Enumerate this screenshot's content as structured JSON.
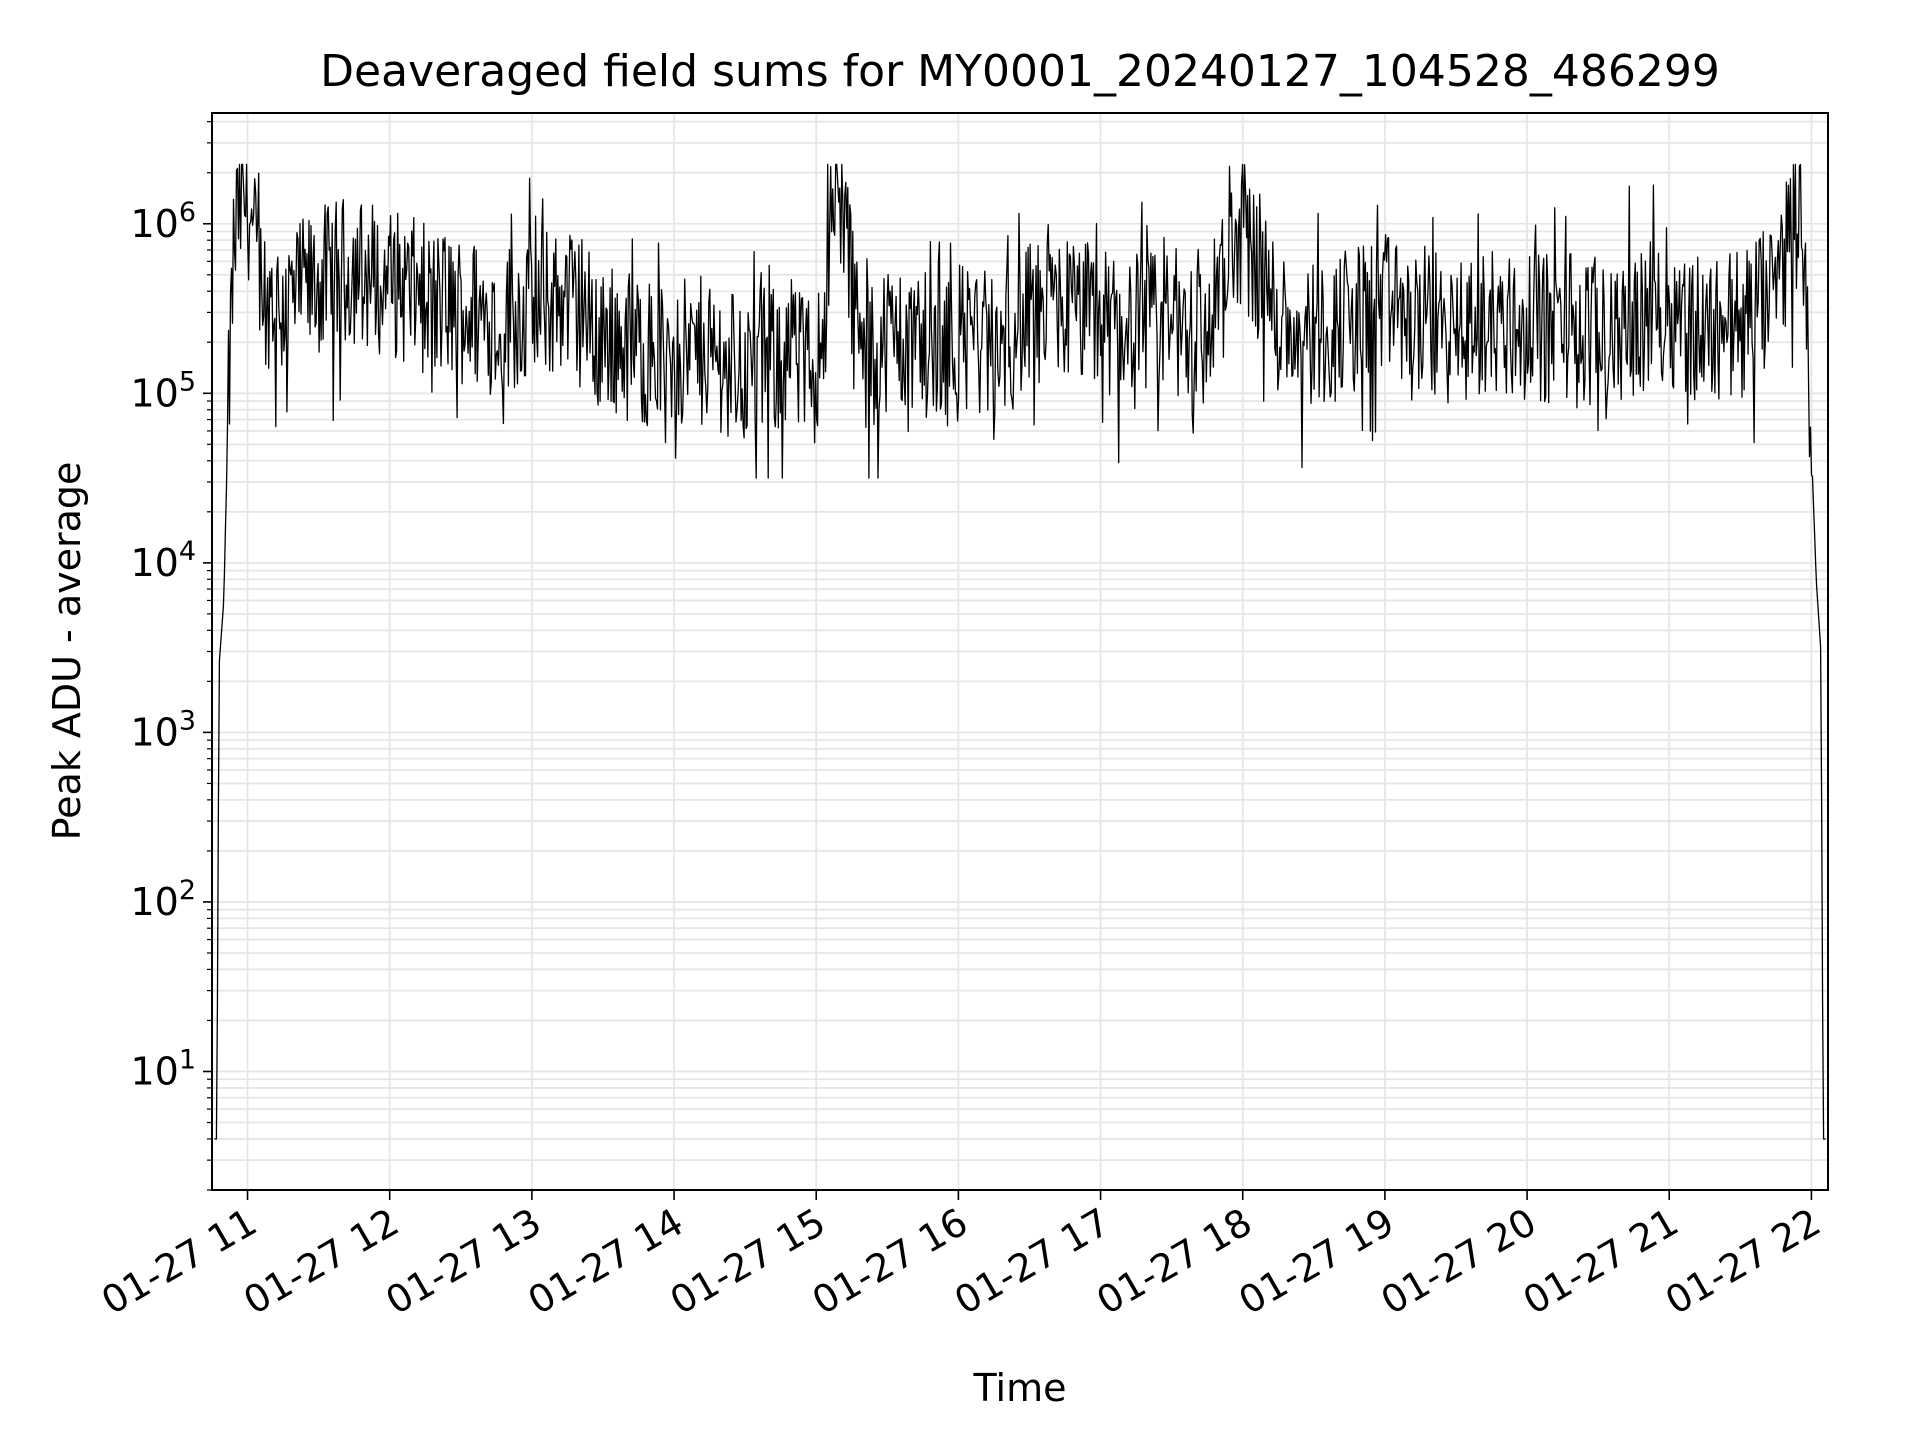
{
  "chart_data": {
    "type": "line",
    "title": "Deaveraged field sums for MY0001_20240127_104528_486299",
    "xlabel": "Time",
    "ylabel": "Peak ADU - average",
    "yscale": "log",
    "ylim": [
      2,
      4500000
    ],
    "xlim": [
      "2024-01-27 10:45",
      "2024-01-27 22:07"
    ],
    "x_ticks": [
      {
        "value": "2024-01-27 11:00",
        "label": "01-27 11"
      },
      {
        "value": "2024-01-27 12:00",
        "label": "01-27 12"
      },
      {
        "value": "2024-01-27 13:00",
        "label": "01-27 13"
      },
      {
        "value": "2024-01-27 14:00",
        "label": "01-27 14"
      },
      {
        "value": "2024-01-27 15:00",
        "label": "01-27 15"
      },
      {
        "value": "2024-01-27 16:00",
        "label": "01-27 16"
      },
      {
        "value": "2024-01-27 17:00",
        "label": "01-27 17"
      },
      {
        "value": "2024-01-27 18:00",
        "label": "01-27 18"
      },
      {
        "value": "2024-01-27 19:00",
        "label": "01-27 19"
      },
      {
        "value": "2024-01-27 20:00",
        "label": "01-27 20"
      },
      {
        "value": "2024-01-27 21:00",
        "label": "01-27 21"
      },
      {
        "value": "2024-01-27 22:00",
        "label": "01-27 22"
      }
    ],
    "y_ticks": [
      {
        "value": 10,
        "base": "10",
        "exp": "1"
      },
      {
        "value": 100,
        "base": "10",
        "exp": "2"
      },
      {
        "value": 1000,
        "base": "10",
        "exp": "3"
      },
      {
        "value": 10000,
        "base": "10",
        "exp": "4"
      },
      {
        "value": 100000,
        "base": "10",
        "exp": "5"
      },
      {
        "value": 1000000,
        "base": "10",
        "exp": "6"
      }
    ],
    "grid": true,
    "line_color": "#000000",
    "series": [
      {
        "points": [
          [
            "2024-01-27 10:46",
            4
          ],
          [
            "2024-01-27 10:47",
            4
          ],
          [
            "2024-01-27 10:48",
            2500
          ],
          [
            "2024-01-27 10:50",
            6000
          ],
          [
            "2024-01-27 10:52",
            100000
          ],
          [
            "2024-01-27 10:54",
            700000
          ],
          [
            "2024-01-27 10:56",
            1300000
          ],
          [
            "2024-01-27 10:58",
            1500000
          ],
          [
            "2024-01-27 11:00",
            1600000
          ],
          [
            "2024-01-27 11:05",
            500000
          ],
          [
            "2024-01-27 11:15",
            350000
          ],
          [
            "2024-01-27 11:30",
            500000
          ],
          [
            "2024-01-27 11:45",
            600000
          ],
          [
            "2024-01-27 12:00",
            500000
          ],
          [
            "2024-01-27 12:15",
            400000
          ],
          [
            "2024-01-27 12:30",
            350000
          ],
          [
            "2024-01-27 12:45",
            300000
          ],
          [
            "2024-01-27 13:00",
            350000
          ],
          [
            "2024-01-27 13:15",
            400000
          ],
          [
            "2024-01-27 13:30",
            250000
          ],
          [
            "2024-01-27 13:45",
            200000
          ],
          [
            "2024-01-27 14:00",
            180000
          ],
          [
            "2024-01-27 14:15",
            200000
          ],
          [
            "2024-01-27 14:30",
            150000
          ],
          [
            "2024-01-27 14:45",
            180000
          ],
          [
            "2024-01-27 15:00",
            150000
          ],
          [
            "2024-01-27 15:10",
            1800000
          ],
          [
            "2024-01-27 15:20",
            150000
          ],
          [
            "2024-01-27 15:30",
            250000
          ],
          [
            "2024-01-27 15:45",
            200000
          ],
          [
            "2024-01-27 16:00",
            250000
          ],
          [
            "2024-01-27 16:15",
            200000
          ],
          [
            "2024-01-27 16:30",
            300000
          ],
          [
            "2024-01-27 16:45",
            350000
          ],
          [
            "2024-01-27 17:00",
            300000
          ],
          [
            "2024-01-27 17:15",
            250000
          ],
          [
            "2024-01-27 17:30",
            300000
          ],
          [
            "2024-01-27 17:45",
            250000
          ],
          [
            "2024-01-27 18:00",
            1100000
          ],
          [
            "2024-01-27 18:15",
            300000
          ],
          [
            "2024-01-27 18:30",
            250000
          ],
          [
            "2024-01-27 18:45",
            300000
          ],
          [
            "2024-01-27 19:00",
            350000
          ],
          [
            "2024-01-27 19:15",
            300000
          ],
          [
            "2024-01-27 19:30",
            250000
          ],
          [
            "2024-01-27 19:45",
            300000
          ],
          [
            "2024-01-27 20:00",
            250000
          ],
          [
            "2024-01-27 20:15",
            300000
          ],
          [
            "2024-01-27 20:30",
            250000
          ],
          [
            "2024-01-27 20:45",
            300000
          ],
          [
            "2024-01-27 21:00",
            350000
          ],
          [
            "2024-01-27 21:15",
            250000
          ],
          [
            "2024-01-27 21:30",
            300000
          ],
          [
            "2024-01-27 21:45",
            400000
          ],
          [
            "2024-01-27 21:50",
            900000
          ],
          [
            "2024-01-27 21:55",
            1300000
          ],
          [
            "2024-01-27 21:58",
            500000
          ],
          [
            "2024-01-27 22:00",
            50000
          ],
          [
            "2024-01-27 22:02",
            8000
          ],
          [
            "2024-01-27 22:04",
            3000
          ],
          [
            "2024-01-27 22:05",
            4
          ],
          [
            "2024-01-27 22:06",
            4
          ]
        ]
      }
    ]
  }
}
